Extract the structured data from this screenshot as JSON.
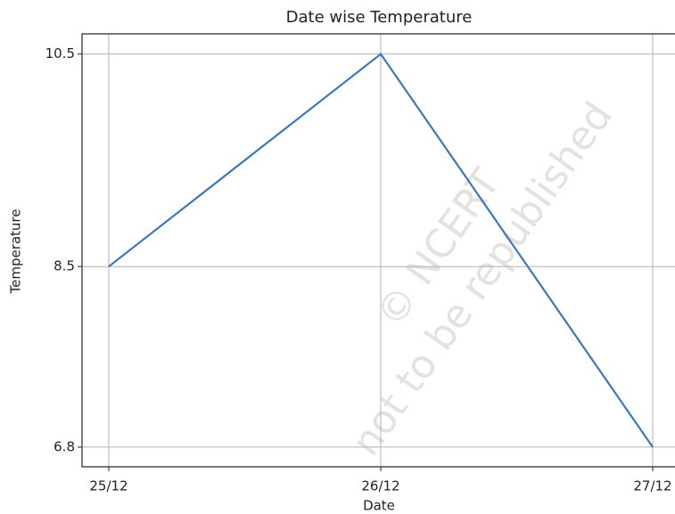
{
  "chart_data": {
    "type": "line",
    "title": "Date wise Temperature",
    "x_label": "Date",
    "y_label": "Temperature",
    "categories": [
      "25/12",
      "26/12",
      "27/12"
    ],
    "series": [
      {
        "name": "Temperature",
        "color": "#3a78bd",
        "values": [
          8.5,
          10.5,
          6.8
        ]
      }
    ],
    "ylim": [
      6.615,
      10.69
    ],
    "yticks": [
      6.8,
      8.5,
      10.5
    ],
    "grid": true,
    "watermark": [
      "© NCERT",
      "not to be republished"
    ]
  }
}
